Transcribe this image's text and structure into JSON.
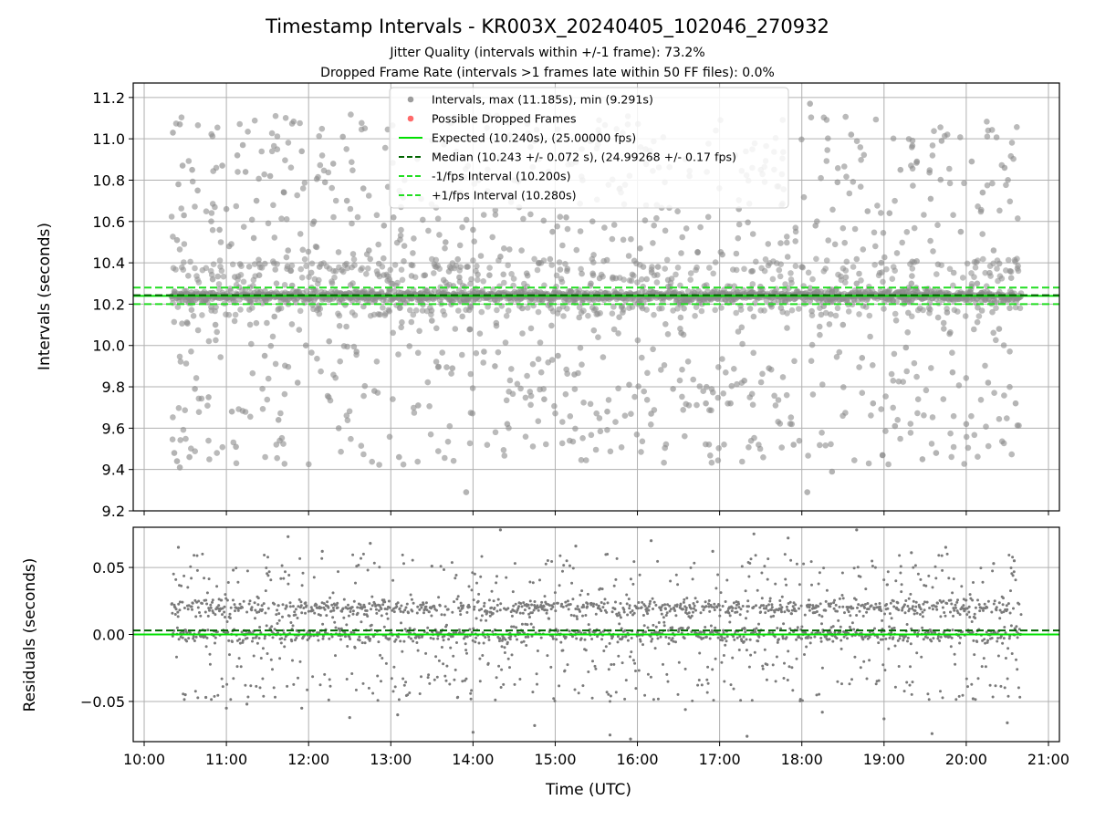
{
  "chart_data": [
    {
      "type": "scatter",
      "title": "Timestamp Intervals - KR003X_20240405_102046_270932",
      "subtitle_lines": [
        "Jitter Quality (intervals within +/-1 frame): 73.2%",
        "Dropped Frame Rate (intervals >1 frames late within 50 FF files): 0.0%"
      ],
      "ylabel": "Intervals (seconds)",
      "xlim": [
        "09:52",
        "21:08"
      ],
      "ylim": [
        9.2,
        11.27
      ],
      "y_ticks": [
        9.2,
        9.4,
        9.6,
        9.8,
        10.0,
        10.2,
        10.4,
        10.6,
        10.8,
        11.0,
        11.2
      ],
      "y_tick_labels": [
        "9.2",
        "9.4",
        "9.6",
        "9.8",
        "10.0",
        "10.2",
        "10.4",
        "10.6",
        "10.8",
        "11.0",
        "11.2"
      ],
      "grid": true,
      "legend_position": "upper-center",
      "legend": [
        {
          "label": "Intervals, max (11.185s), min (9.291s)",
          "marker": "dot",
          "color": "#8c8c8c"
        },
        {
          "label": "Possible Dropped Frames",
          "marker": "dot",
          "color": "#ff5050"
        },
        {
          "label": "Expected (10.240s), (25.00000 fps)",
          "marker": "line",
          "color": "#00e000"
        },
        {
          "label": "Median (10.243 +/- 0.072 s), (24.99268 +/- 0.17 fps)",
          "marker": "dashed",
          "color": "#006400"
        },
        {
          "label": "-1/fps Interval (10.200s)",
          "marker": "dashed",
          "color": "#22dd22"
        },
        {
          "label": "+1/fps Interval (10.280s)",
          "marker": "dashed",
          "color": "#22dd22"
        }
      ],
      "reference_lines": {
        "expected": 10.24,
        "median": 10.243,
        "minus_one_fps": 10.2,
        "plus_one_fps": 10.28
      },
      "series": [
        {
          "name": "Intervals",
          "x_range": [
            "10:20",
            "20:40"
          ],
          "max": 11.185,
          "min": 9.291,
          "points": [
            [
              "10:21",
              11.03
            ],
            [
              "10:22",
              10.25
            ],
            [
              "10:22",
              9.48
            ],
            [
              "10:24",
              9.44
            ],
            [
              "10:24",
              10.51
            ],
            [
              "10:25",
              10.78
            ],
            [
              "10:26",
              11.07
            ],
            [
              "10:26",
              9.41
            ],
            [
              "10:28",
              10.87
            ],
            [
              "10:29",
              10.63
            ],
            [
              "10:33",
              9.46
            ],
            [
              "10:35",
              10.85
            ],
            [
              "10:37",
              9.79
            ],
            [
              "10:39",
              10.75
            ],
            [
              "10:45",
              10.22
            ],
            [
              "10:47",
              9.75
            ],
            [
              "10:50",
              10.32
            ],
            [
              "10:52",
              10.1
            ],
            [
              "10:55",
              10.56
            ],
            [
              "10:57",
              10.87
            ],
            [
              "11:00",
              10.66
            ],
            [
              "11:02",
              10.48
            ],
            [
              "11:04",
              9.68
            ],
            [
              "11:07",
              9.51
            ],
            [
              "11:08",
              10.92
            ],
            [
              "11:12",
              10.97
            ],
            [
              "11:14",
              10.84
            ],
            [
              "11:18",
              10.21
            ],
            [
              "11:20",
              10.52
            ],
            [
              "11:22",
              10.7
            ],
            [
              "11:24",
              10.34
            ],
            [
              "11:25",
              10.26
            ],
            [
              "11:28",
              9.95
            ],
            [
              "11:32",
              10.82
            ],
            [
              "11:35",
              10.14
            ],
            [
              "11:38",
              9.64
            ],
            [
              "11:42",
              10.74
            ],
            [
              "11:45",
              10.46
            ],
            [
              "11:48",
              10.29
            ],
            [
              "11:52",
              9.82
            ],
            [
              "11:55",
              10.94
            ],
            [
              "11:58",
              10.0
            ],
            [
              "12:04",
              10.6
            ],
            [
              "12:08",
              10.38
            ],
            [
              "12:12",
              10.79
            ],
            [
              "12:15",
              10.02
            ],
            [
              "12:18",
              10.88
            ],
            [
              "12:22",
              9.6
            ],
            [
              "12:25",
              11.01
            ],
            [
              "12:28",
              10.7
            ],
            [
              "12:32",
              10.24
            ],
            [
              "12:35",
              9.97
            ],
            [
              "12:40",
              10.76
            ],
            [
              "12:44",
              10.46
            ],
            [
              "12:48",
              9.78
            ],
            [
              "12:52",
              10.15
            ],
            [
              "12:55",
              10.58
            ],
            [
              "13:02",
              10.62
            ],
            [
              "13:06",
              9.46
            ],
            [
              "13:10",
              10.8
            ],
            [
              "13:15",
              10.39
            ],
            [
              "13:20",
              9.71
            ],
            [
              "13:25",
              10.34
            ],
            [
              "13:30",
              10.12
            ],
            [
              "13:35",
              10.72
            ],
            [
              "13:40",
              10.5
            ],
            [
              "13:45",
              9.89
            ],
            [
              "13:50",
              10.33
            ],
            [
              "13:55",
              9.29
            ],
            [
              "14:00",
              10.56
            ],
            [
              "14:04",
              10.8
            ],
            [
              "14:08",
              9.97
            ],
            [
              "14:12",
              10.34
            ],
            [
              "14:16",
              9.9
            ],
            [
              "14:20",
              10.43
            ],
            [
              "14:25",
              9.62
            ],
            [
              "14:30",
              10.8
            ],
            [
              "14:36",
              10.18
            ],
            [
              "14:42",
              10.96
            ],
            [
              "14:48",
              10.4
            ],
            [
              "14:52",
              9.74
            ],
            [
              "14:58",
              10.55
            ],
            [
              "15:02",
              9.95
            ],
            [
              "15:08",
              10.62
            ],
            [
              "15:14",
              9.86
            ],
            [
              "15:20",
              10.8
            ],
            [
              "15:26",
              10.3
            ],
            [
              "15:32",
              11.09
            ],
            [
              "15:38",
              9.68
            ],
            [
              "15:42",
              10.33
            ],
            [
              "15:48",
              10.74
            ],
            [
              "15:54",
              9.81
            ],
            [
              "16:02",
              10.47
            ],
            [
              "16:06",
              10.95
            ],
            [
              "16:10",
              9.67
            ],
            [
              "16:15",
              10.38
            ],
            [
              "16:20",
              10.79
            ],
            [
              "16:26",
              9.79
            ],
            [
              "16:32",
              10.06
            ],
            [
              "16:38",
              10.82
            ],
            [
              "16:44",
              10.45
            ],
            [
              "16:50",
              9.72
            ],
            [
              "16:56",
              10.24
            ],
            [
              "17:02",
              10.44
            ],
            [
              "17:08",
              9.72
            ],
            [
              "17:14",
              10.66
            ],
            [
              "17:18",
              9.83
            ],
            [
              "17:24",
              10.36
            ],
            [
              "17:30",
              10.85
            ],
            [
              "17:36",
              9.89
            ],
            [
              "17:42",
              10.77
            ],
            [
              "17:48",
              10.21
            ],
            [
              "17:54",
              9.52
            ],
            [
              "18:00",
              10.38
            ],
            [
              "18:04",
              9.29
            ],
            [
              "18:06",
              11.17
            ],
            [
              "18:10",
              10.58
            ],
            [
              "18:16",
              10.19
            ],
            [
              "18:22",
              9.39
            ],
            [
              "18:26",
              10.79
            ],
            [
              "18:30",
              10.1
            ],
            [
              "18:36",
              11.02
            ],
            [
              "18:40",
              10.3
            ],
            [
              "18:44",
              9.94
            ],
            [
              "18:48",
              10.65
            ],
            [
              "18:52",
              9.72
            ],
            [
              "18:58",
              10.4
            ],
            [
              "19:04",
              10.64
            ],
            [
              "19:08",
              9.61
            ],
            [
              "19:12",
              10.85
            ],
            [
              "19:16",
              9.99
            ],
            [
              "19:20",
              10.3
            ],
            [
              "19:24",
              10.89
            ],
            [
              "19:28",
              9.45
            ],
            [
              "19:34",
              10.71
            ],
            [
              "19:38",
              9.48
            ],
            [
              "19:42",
              10.99
            ],
            [
              "19:46",
              10.16
            ],
            [
              "19:50",
              9.87
            ],
            [
              "19:56",
              10.55
            ],
            [
              "20:00",
              9.62
            ],
            [
              "20:04",
              10.89
            ],
            [
              "20:08",
              10.3
            ],
            [
              "20:12",
              10.74
            ],
            [
              "20:16",
              9.82
            ],
            [
              "20:20",
              10.46
            ],
            [
              "20:24",
              10.08
            ],
            [
              "20:28",
              10.86
            ],
            [
              "20:32",
              10.36
            ],
            [
              "20:36",
              9.72
            ]
          ]
        }
      ]
    },
    {
      "type": "scatter",
      "ylabel": "Residuals (seconds)",
      "xlabel": "Time (UTC)",
      "xlim": [
        "09:52",
        "21:08"
      ],
      "ylim": [
        -0.08,
        0.08
      ],
      "x_tick_labels": [
        "10:00",
        "11:00",
        "12:00",
        "13:00",
        "14:00",
        "15:00",
        "16:00",
        "17:00",
        "18:00",
        "19:00",
        "20:00",
        "21:00"
      ],
      "y_ticks": [
        -0.05,
        0.0,
        0.05
      ],
      "y_tick_labels": [
        "−0.05",
        "0.00",
        "0.05"
      ],
      "grid": true,
      "reference_lines": {
        "expected": 0.0,
        "median": 0.003
      },
      "series": [
        {
          "name": "Residuals",
          "x_range": [
            "10:20",
            "20:40"
          ],
          "bands": [
            0.0,
            0.02
          ],
          "points": [
            [
              "10:25",
              0.065
            ],
            [
              "10:30",
              -0.045
            ],
            [
              "10:45",
              -0.047
            ],
            [
              "11:00",
              -0.055
            ],
            [
              "11:05",
              0.048
            ],
            [
              "11:15",
              -0.052
            ],
            [
              "11:45",
              0.073
            ],
            [
              "11:55",
              -0.055
            ],
            [
              "12:10",
              0.062
            ],
            [
              "12:30",
              -0.062
            ],
            [
              "12:45",
              0.068
            ],
            [
              "13:05",
              -0.06
            ],
            [
              "13:30",
              0.051
            ],
            [
              "14:00",
              -0.073
            ],
            [
              "14:20",
              0.078
            ],
            [
              "14:45",
              -0.068
            ],
            [
              "15:15",
              0.066
            ],
            [
              "15:40",
              -0.075
            ],
            [
              "15:55",
              -0.078
            ],
            [
              "16:10",
              0.07
            ],
            [
              "16:35",
              -0.056
            ],
            [
              "16:55",
              0.062
            ],
            [
              "17:20",
              -0.076
            ],
            [
              "17:25",
              0.075
            ],
            [
              "17:50",
              0.072
            ],
            [
              "18:15",
              -0.058
            ],
            [
              "18:40",
              0.078
            ],
            [
              "19:00",
              -0.063
            ],
            [
              "19:20",
              0.061
            ],
            [
              "19:35",
              -0.074
            ],
            [
              "19:45",
              0.065
            ],
            [
              "20:05",
              -0.048
            ],
            [
              "20:20",
              0.053
            ],
            [
              "20:30",
              -0.066
            ],
            [
              "20:35",
              0.055
            ]
          ]
        }
      ]
    }
  ]
}
